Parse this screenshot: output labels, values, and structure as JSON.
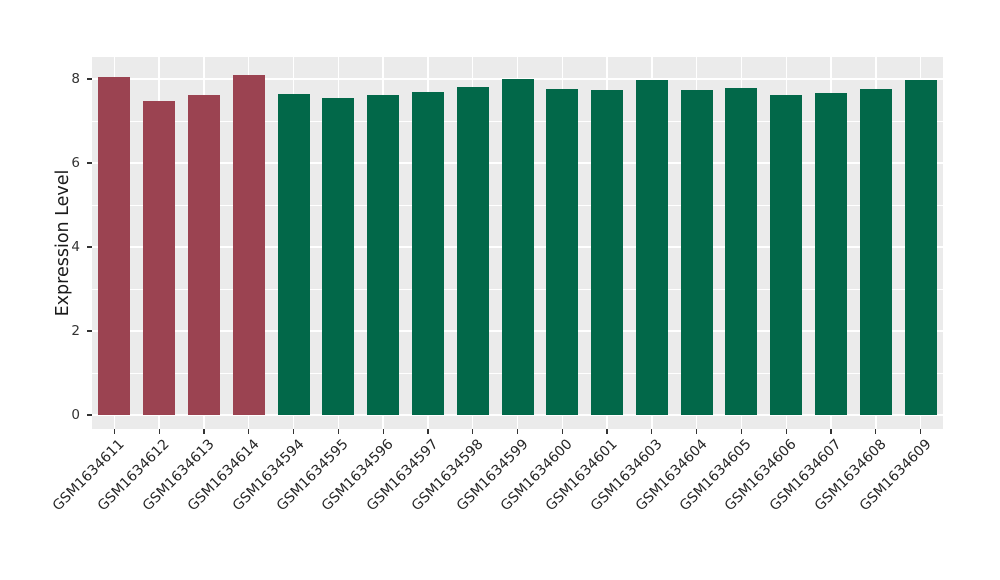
{
  "chart_data": {
    "type": "bar",
    "title": "",
    "xlabel": "",
    "ylabel": "Expression Level",
    "categories": [
      "GSM1634611",
      "GSM1634612",
      "GSM1634613",
      "GSM1634614",
      "GSM1634594",
      "GSM1634595",
      "GSM1634596",
      "GSM1634597",
      "GSM1634598",
      "GSM1634599",
      "GSM1634600",
      "GSM1634601",
      "GSM1634603",
      "GSM1634604",
      "GSM1634605",
      "GSM1634606",
      "GSM1634607",
      "GSM1634608",
      "GSM1634609"
    ],
    "values": [
      8.05,
      7.48,
      7.62,
      8.1,
      7.64,
      7.55,
      7.63,
      7.69,
      7.8,
      8.0,
      7.77,
      7.74,
      7.97,
      7.75,
      7.79,
      7.62,
      7.66,
      7.77,
      7.97
    ],
    "bar_colors": [
      "#9B4351",
      "#9B4351",
      "#9B4351",
      "#9B4351",
      "#026849",
      "#026849",
      "#026849",
      "#026849",
      "#026849",
      "#026849",
      "#026849",
      "#026849",
      "#026849",
      "#026849",
      "#026849",
      "#026849",
      "#026849",
      "#026849",
      "#026849"
    ],
    "groups": [
      {
        "name": "group-red",
        "color": "#9B4351",
        "categories": [
          "GSM1634611",
          "GSM1634612",
          "GSM1634613",
          "GSM1634614"
        ]
      },
      {
        "name": "group-green",
        "color": "#026849",
        "categories": [
          "GSM1634594",
          "GSM1634595",
          "GSM1634596",
          "GSM1634597",
          "GSM1634598",
          "GSM1634599",
          "GSM1634600",
          "GSM1634601",
          "GSM1634603",
          "GSM1634604",
          "GSM1634605",
          "GSM1634606",
          "GSM1634607",
          "GSM1634608",
          "GSM1634609"
        ]
      }
    ],
    "yticks": [
      "0",
      "2",
      "4",
      "6",
      "8"
    ],
    "ytick_values": [
      0,
      2,
      4,
      6,
      8
    ],
    "minor_gridlines": [
      1,
      3,
      5,
      7
    ],
    "ylim": [
      0,
      8.52
    ],
    "grid": {
      "panel_bg": "#EBEBEB",
      "gridline_color": "#FFFFFF",
      "grid_on": true
    },
    "legend": "none",
    "bar_orientation": "vertical"
  }
}
